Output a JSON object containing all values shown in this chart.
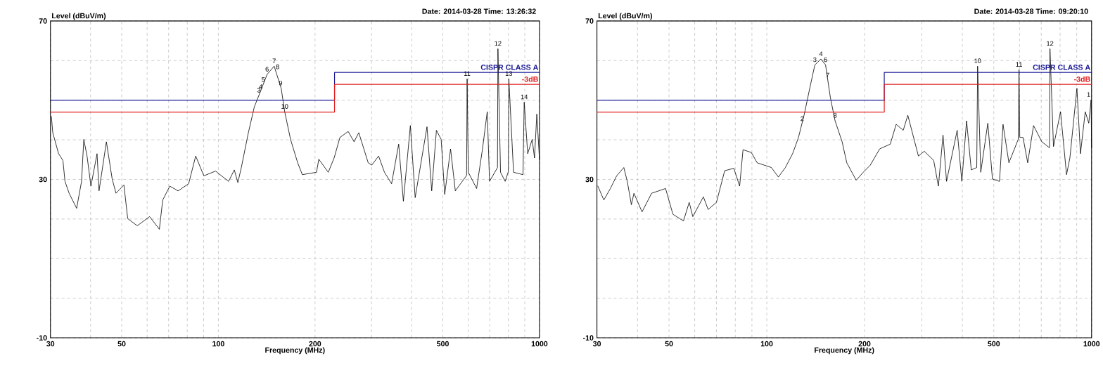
{
  "chart_data": [
    {
      "type": "line",
      "title": "Date: 2014-03-28 Time: 13:26:32",
      "ylabel": "Level (dBuV/m)",
      "xlabel": "Frequency (MHz)",
      "log": "x",
      "grid": true,
      "xlim": [
        30,
        1000
      ],
      "ylim": [
        -10,
        70
      ],
      "xticks": [
        30,
        {
          "value": 40,
          "label": null
        },
        50,
        {
          "value": 60,
          "label": null
        },
        {
          "value": 70,
          "label": null
        },
        {
          "value": 80,
          "label": null
        },
        {
          "value": 90,
          "label": null
        },
        100,
        200,
        {
          "value": 300,
          "label": null
        },
        {
          "value": 400,
          "label": null
        },
        500,
        {
          "value": 600,
          "label": null
        },
        {
          "value": 700,
          "label": null
        },
        {
          "value": 800,
          "label": null
        },
        {
          "value": 900,
          "label": null
        },
        1000
      ],
      "yticks": [
        -10,
        {
          "value": 0,
          "label": null
        },
        {
          "value": 10,
          "label": null
        },
        {
          "value": 20,
          "label": null
        },
        30,
        {
          "value": 40,
          "label": null
        },
        {
          "value": 50,
          "label": null
        },
        {
          "value": 60,
          "label": null
        },
        70
      ],
      "series": [
        {
          "color": "#000000",
          "x": [
            30.2,
            30.5,
            31.8,
            32.8,
            33.3,
            34.3,
            36.2,
            37.5,
            38.1,
            39.0,
            40.1,
            41.9,
            42.5,
            44.8,
            46.7,
            48.0,
            50.8,
            52.2,
            55.9,
            61.1,
            65.5,
            67.1,
            70.6,
            74.9,
            80.8,
            85.0,
            90.1,
            98.0,
            107.6,
            112.1,
            115.0,
            117.9,
            124.0,
            129.4,
            133.7,
            141.8,
            149.2,
            156.9,
            160.9,
            167.8,
            176.6,
            182.6,
            202.1,
            205.5,
            219.9,
            229.3,
            239.1,
            253.7,
            264.6,
            273.7,
            292.8,
            300.3,
            315.5,
            329.1,
            346.3,
            364.4,
            376.9,
            396.2,
            410.1,
            446.4,
            461.7,
            477.6,
            494.1,
            506.8,
            528.6,
            546.9,
            593,
            595.2,
            600.4,
            637.1,
            664.6,
            687.6,
            699,
            740,
            742.3,
            756.4,
            782,
            800,
            802.7,
            830.3,
            888.4,
            896.2,
            918.9,
            949,
            965,
            981,
            1000
          ],
          "values": [
            45.9,
            41.8,
            36.5,
            34.8,
            29.5,
            26.5,
            22.7,
            29.5,
            40.1,
            35.9,
            28.3,
            36.5,
            27.1,
            39.5,
            30.1,
            26.5,
            28.6,
            20.1,
            18.3,
            20.6,
            17.4,
            24.8,
            28.3,
            27.1,
            28.9,
            35.9,
            30.9,
            32.1,
            29.5,
            32.4,
            29.2,
            33.0,
            41.8,
            48.3,
            51.2,
            56.5,
            58.6,
            53.0,
            47.1,
            40.1,
            34.2,
            31.2,
            31.8,
            35.1,
            31.8,
            35.4,
            40.6,
            42.1,
            39.5,
            41.8,
            34.2,
            33.6,
            35.9,
            31.8,
            28.9,
            38.9,
            24.5,
            43.6,
            25.4,
            43.3,
            27.1,
            42.4,
            40.1,
            26.2,
            37.7,
            27.1,
            31.0,
            55.4,
            31.8,
            27.7,
            37.7,
            47.1,
            29.5,
            33.0,
            63.0,
            31.8,
            29.5,
            32.0,
            55.4,
            31.8,
            31.2,
            49.5,
            36.5,
            40.1,
            35.4,
            46.5,
            35.0
          ]
        },
        {
          "name": "CISPR CLASS A",
          "color": "#1a1a96",
          "x": [
            30,
            230,
            230,
            1000
          ],
          "values": [
            50,
            50,
            57,
            57
          ]
        },
        {
          "name": "-3dB",
          "color": "#e01e1e",
          "x": [
            30,
            230,
            230,
            1000
          ],
          "values": [
            47,
            47,
            54,
            54
          ]
        }
      ],
      "annotations": [
        {
          "text": "3",
          "x": 133.7,
          "y": 51.2
        },
        {
          "text": "4",
          "x": 135.6,
          "y": 52.1
        },
        {
          "text": "5",
          "x": 138,
          "y": 53.9
        },
        {
          "text": "6",
          "x": 141.8,
          "y": 56.5
        },
        {
          "text": "7",
          "x": 149.2,
          "y": 58.6
        },
        {
          "text": "8",
          "x": 152.9,
          "y": 57.1
        },
        {
          "text": "9",
          "x": 156.3,
          "y": 53.0
        },
        {
          "text": "10",
          "x": 160.9,
          "y": 47.1
        },
        {
          "text": "11",
          "x": 595.2,
          "y": 55.4
        },
        {
          "text": "12",
          "x": 742.3,
          "y": 63.0
        },
        {
          "text": "13",
          "x": 802.7,
          "y": 55.4
        },
        {
          "text": "14",
          "x": 896.2,
          "y": 49.5
        }
      ]
    },
    {
      "type": "line",
      "title": "Date: 2014-03-28 Time: 09:20:10",
      "ylabel": "Level (dBuV/m)",
      "xlabel": "Frequency (MHz)",
      "log": "x",
      "grid": true,
      "xlim": [
        30,
        1000
      ],
      "ylim": [
        -10,
        70
      ],
      "xticks": [
        30,
        {
          "value": 40,
          "label": null
        },
        50,
        {
          "value": 60,
          "label": null
        },
        {
          "value": 70,
          "label": null
        },
        {
          "value": 80,
          "label": null
        },
        {
          "value": 90,
          "label": null
        },
        100,
        200,
        {
          "value": 300,
          "label": null
        },
        {
          "value": 400,
          "label": null
        },
        500,
        {
          "value": 600,
          "label": null
        },
        {
          "value": 700,
          "label": null
        },
        {
          "value": 800,
          "label": null
        },
        {
          "value": 900,
          "label": null
        },
        1000
      ],
      "yticks": [
        -10,
        {
          "value": 0,
          "label": null
        },
        {
          "value": 10,
          "label": null
        },
        {
          "value": 20,
          "label": null
        },
        30,
        {
          "value": 40,
          "label": null
        },
        {
          "value": 50,
          "label": null
        },
        {
          "value": 60,
          "label": null
        },
        70
      ],
      "series": [
        {
          "color": "#000000",
          "x": [
            30.2,
            31.5,
            33.0,
            34.5,
            36.3,
            37.2,
            38.3,
            39.0,
            41.3,
            44.2,
            48.8,
            51.4,
            55.4,
            57.7,
            59.2,
            63.8,
            66.0,
            70.0,
            74.2,
            79.2,
            82.5,
            84.5,
            89.6,
            93.4,
            103.3,
            108.6,
            114.1,
            120.1,
            125.2,
            130.5,
            136.1,
            140.6,
            146.8,
            151.7,
            157.0,
            162.3,
            170.6,
            176.3,
            188.5,
            198.2,
            208.3,
            222.6,
            240.0,
            250.2,
            263.1,
            271.8,
            293.0,
            305.5,
            326.5,
            337.6,
            348.9,
            357.7,
            385.7,
            398.7,
            412.2,
            426.2,
            443,
            445.8,
            455.8,
            479.2,
            495.2,
            520.6,
            533.8,
            556.5,
            594.6,
            598,
            601,
            615.1,
            635.8,
            662.8,
            702.6,
            742,
            744.6,
            763.4,
            802.4,
            837.3,
            857.4,
            901.3,
            924.2,
            956.1,
            980.3,
            996.7,
            1000
          ],
          "values": [
            28.3,
            24.8,
            27.7,
            30.9,
            33.0,
            29.5,
            23.6,
            26.5,
            21.8,
            26.5,
            27.7,
            21.2,
            19.5,
            24.2,
            20.6,
            25.6,
            22.4,
            24.2,
            32.2,
            32.8,
            28.3,
            37.5,
            36.8,
            34.2,
            33.0,
            30.6,
            33.0,
            36.5,
            40.6,
            46.5,
            53.6,
            58.9,
            60.4,
            58.9,
            50.6,
            44.8,
            39.5,
            34.2,
            29.8,
            31.8,
            33.6,
            37.7,
            38.9,
            43.9,
            42.4,
            46.2,
            35.9,
            37.1,
            34.8,
            28.3,
            41.2,
            29.5,
            42.4,
            29.5,
            44.8,
            32.4,
            33.0,
            58.6,
            31.8,
            44.2,
            30.1,
            29.5,
            43.9,
            34.2,
            40.1,
            57.7,
            40.6,
            40.6,
            34.2,
            43.6,
            39.5,
            38.0,
            63.0,
            38.3,
            47.1,
            31.2,
            35.4,
            53.0,
            36.5,
            47.1,
            44.2,
            50.1,
            38.0
          ]
        },
        {
          "name": "CISPR CLASS A",
          "color": "#1a1a96",
          "x": [
            30,
            230,
            230,
            1000
          ],
          "values": [
            50,
            50,
            57,
            57
          ]
        },
        {
          "name": "-3dB",
          "color": "#e01e1e",
          "x": [
            30,
            230,
            230,
            1000
          ],
          "values": [
            47,
            47,
            54,
            54
          ]
        }
      ],
      "annotations": [
        {
          "text": "2",
          "x": 128.5,
          "y": 44.0
        },
        {
          "text": "3",
          "x": 140.6,
          "y": 58.9
        },
        {
          "text": "4",
          "x": 146.8,
          "y": 60.4
        },
        {
          "text": "6",
          "x": 151.7,
          "y": 58.9
        },
        {
          "text": "7",
          "x": 154.0,
          "y": 55.0
        },
        {
          "text": "8",
          "x": 162.3,
          "y": 44.8
        },
        {
          "text": "10",
          "x": 445.8,
          "y": 58.6
        },
        {
          "text": "11",
          "x": 598,
          "y": 57.7
        },
        {
          "text": "12",
          "x": 744.6,
          "y": 63.0
        },
        {
          "text": "1",
          "x": 996.7,
          "y": 50.1
        }
      ]
    }
  ]
}
